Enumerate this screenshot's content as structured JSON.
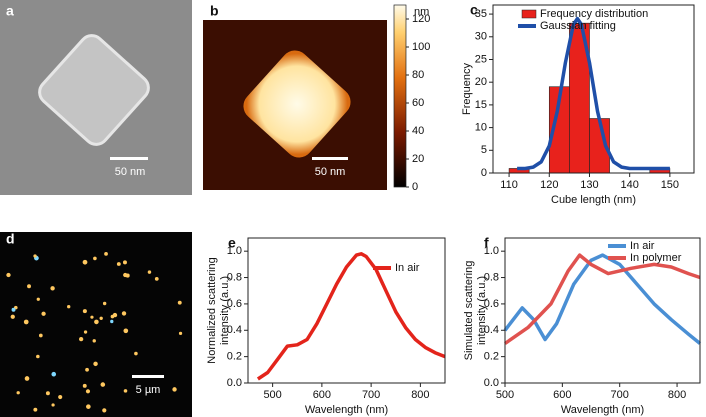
{
  "panels": {
    "a": {
      "label": "a",
      "scale_bar": "50 nm"
    },
    "b": {
      "label": "b",
      "scale_bar": "50 nm",
      "colorbar": {
        "unit": "nm",
        "lim": [
          0,
          130
        ],
        "ticks": [
          0,
          20,
          40,
          60,
          80,
          100,
          120
        ]
      }
    },
    "d": {
      "label": "d",
      "scale_bar": "5 µm"
    }
  },
  "chart_data": [
    {
      "type": "histogram",
      "label": "c",
      "xlabel": "Cube length (nm)",
      "ylabel": "Frequency",
      "histogram": {
        "name": "Frequency distribution",
        "color": "#e8221c",
        "bins": [
          110,
          115,
          120,
          125,
          130,
          135,
          140,
          145,
          150
        ],
        "counts": [
          1,
          0,
          19,
          33,
          12,
          0,
          0,
          1
        ]
      },
      "series": [
        {
          "name": "Gaussian fitting",
          "color": "#1f4fa8",
          "x": [
            112,
            114,
            116,
            118,
            120,
            122,
            124,
            126,
            127,
            128,
            130,
            132,
            134,
            136,
            138,
            140,
            145,
            150
          ],
          "values": [
            1,
            1,
            1.3,
            2.45,
            6,
            13.6,
            24.3,
            32.7,
            34,
            32.7,
            24.3,
            13.6,
            6,
            2.45,
            1.3,
            1,
            1,
            1
          ]
        }
      ],
      "xlim": [
        106,
        156
      ],
      "xticks": [
        110,
        120,
        130,
        140,
        150
      ],
      "ylim": [
        0,
        37
      ],
      "yticks": [
        0,
        5,
        10,
        15,
        20,
        25,
        30,
        35
      ]
    },
    {
      "type": "line",
      "label": "e",
      "xlabel": "Wavelength (nm)",
      "ylabel": [
        "Normalized scattering",
        "intensity (a.u.)"
      ],
      "series": [
        {
          "name": "In air",
          "color": "#e3241b",
          "x": [
            470,
            490,
            510,
            530,
            550,
            570,
            590,
            610,
            630,
            650,
            670,
            680,
            690,
            710,
            730,
            750,
            770,
            790,
            810,
            830,
            850
          ],
          "values": [
            0.03,
            0.08,
            0.18,
            0.28,
            0.29,
            0.33,
            0.45,
            0.6,
            0.75,
            0.88,
            0.97,
            0.98,
            0.96,
            0.86,
            0.7,
            0.54,
            0.42,
            0.33,
            0.27,
            0.23,
            0.2
          ]
        }
      ],
      "xlim": [
        450,
        850
      ],
      "xticks": [
        500,
        600,
        700,
        800
      ],
      "ylim": [
        0,
        1.1
      ],
      "yticks": [
        {
          "value": 0,
          "label": "0.0"
        },
        {
          "value": 0.2,
          "label": "0.2"
        },
        {
          "value": 0.4,
          "label": "0.4"
        },
        {
          "value": 0.6,
          "label": "0.6"
        },
        {
          "value": 0.8,
          "label": "0.8"
        },
        {
          "value": 1,
          "label": "1.0"
        }
      ]
    },
    {
      "type": "line",
      "label": "f",
      "xlabel": "Wavelength (nm)",
      "ylabel": [
        "Simulated scattering",
        "intensity (a.u.)"
      ],
      "series": [
        {
          "name": "In air",
          "color": "#4a8fd4",
          "x": [
            500,
            530,
            550,
            570,
            590,
            620,
            650,
            670,
            700,
            730,
            760,
            790,
            820,
            840
          ],
          "values": [
            0.4,
            0.57,
            0.48,
            0.33,
            0.45,
            0.75,
            0.93,
            0.97,
            0.9,
            0.75,
            0.6,
            0.48,
            0.37,
            0.3
          ]
        },
        {
          "name": "In polymer",
          "color": "#e0524f",
          "x": [
            500,
            540,
            580,
            610,
            630,
            650,
            680,
            720,
            760,
            790,
            820,
            840
          ],
          "values": [
            0.3,
            0.42,
            0.6,
            0.85,
            0.97,
            0.9,
            0.83,
            0.87,
            0.9,
            0.88,
            0.83,
            0.8
          ]
        }
      ],
      "xlim": [
        500,
        840
      ],
      "xticks": [
        500,
        600,
        700,
        800
      ],
      "ylim": [
        0,
        1.1
      ],
      "yticks": [
        {
          "value": 0,
          "label": "0.0"
        },
        {
          "value": 0.2,
          "label": "0.2"
        },
        {
          "value": 0.4,
          "label": "0.4"
        },
        {
          "value": 0.6,
          "label": "0.6"
        },
        {
          "value": 0.8,
          "label": "0.8"
        },
        {
          "value": 1,
          "label": "1.0"
        }
      ]
    }
  ]
}
